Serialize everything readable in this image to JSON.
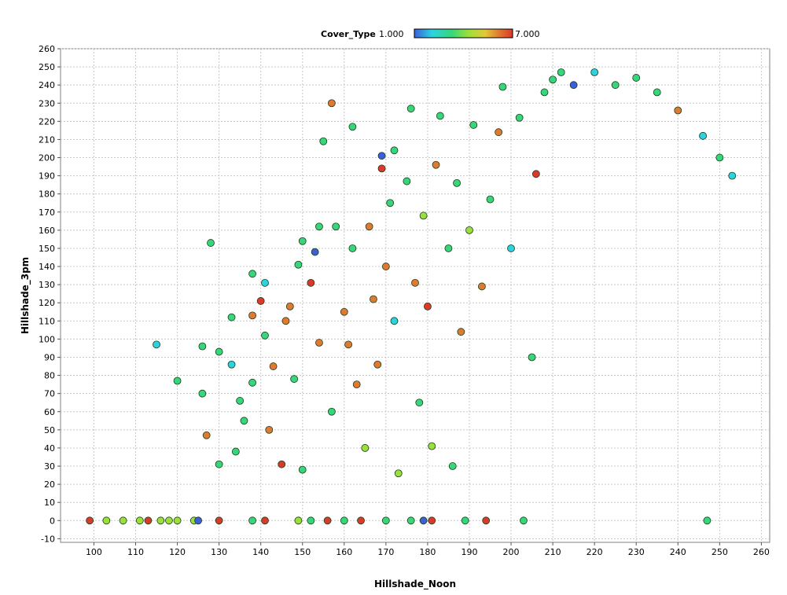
{
  "chart_data": {
    "type": "scatter",
    "xlabel": "Hillshade_Noon",
    "ylabel": "Hillshade_3pm",
    "xlim": [
      92,
      262
    ],
    "ylim": [
      -12,
      260
    ],
    "x_ticks": [
      100,
      110,
      120,
      130,
      140,
      150,
      160,
      170,
      180,
      190,
      200,
      210,
      220,
      230,
      240,
      250,
      260
    ],
    "y_ticks": [
      -10,
      0,
      10,
      20,
      30,
      40,
      50,
      60,
      70,
      80,
      90,
      100,
      110,
      120,
      130,
      140,
      150,
      160,
      170,
      180,
      190,
      200,
      210,
      220,
      230,
      240,
      250,
      260
    ],
    "grid": true,
    "legend": {
      "title": "Cover_Type",
      "min_label": "1.000",
      "max_label": "7.000",
      "placement": "top-center",
      "colors": [
        "#3a5fd9",
        "#2bd3e0",
        "#37d67a",
        "#9be03a",
        "#e3c83a",
        "#e07a30",
        "#d93a2b"
      ]
    },
    "points": [
      [
        99,
        0,
        7
      ],
      [
        103,
        0,
        4
      ],
      [
        107,
        0,
        4
      ],
      [
        111,
        0,
        4
      ],
      [
        113,
        0,
        7
      ],
      [
        116,
        0,
        4
      ],
      [
        118,
        0,
        4
      ],
      [
        120,
        0,
        4
      ],
      [
        124,
        0,
        4
      ],
      [
        125,
        0,
        1
      ],
      [
        130,
        0,
        7
      ],
      [
        138,
        0,
        3
      ],
      [
        141,
        0,
        7
      ],
      [
        149,
        0,
        4
      ],
      [
        152,
        0,
        3
      ],
      [
        156,
        0,
        7
      ],
      [
        160,
        0,
        3
      ],
      [
        164,
        0,
        7
      ],
      [
        170,
        0,
        3
      ],
      [
        176,
        0,
        3
      ],
      [
        179,
        0,
        1
      ],
      [
        181,
        0,
        7
      ],
      [
        189,
        0,
        3
      ],
      [
        194,
        0,
        7
      ],
      [
        203,
        0,
        3
      ],
      [
        247,
        0,
        3
      ],
      [
        115,
        97,
        2
      ],
      [
        120,
        77,
        3
      ],
      [
        126,
        96,
        3
      ],
      [
        126,
        70,
        3
      ],
      [
        128,
        153,
        3
      ],
      [
        127,
        47,
        6
      ],
      [
        130,
        93,
        3
      ],
      [
        130,
        31,
        3
      ],
      [
        133,
        112,
        3
      ],
      [
        133,
        86,
        2
      ],
      [
        134,
        38,
        3
      ],
      [
        135,
        66,
        3
      ],
      [
        136,
        55,
        3
      ],
      [
        138,
        76,
        3
      ],
      [
        138,
        113,
        6
      ],
      [
        138,
        136,
        3
      ],
      [
        140,
        121,
        7
      ],
      [
        141,
        131,
        2
      ],
      [
        141,
        102,
        3
      ],
      [
        142,
        50,
        6
      ],
      [
        143,
        85,
        6
      ],
      [
        145,
        31,
        7
      ],
      [
        146,
        110,
        6
      ],
      [
        147,
        118,
        6
      ],
      [
        148,
        78,
        3
      ],
      [
        149,
        141,
        3
      ],
      [
        150,
        154,
        3
      ],
      [
        150,
        28,
        3
      ],
      [
        152,
        131,
        7
      ],
      [
        153,
        148,
        1
      ],
      [
        154,
        162,
        3
      ],
      [
        154,
        98,
        6
      ],
      [
        155,
        209,
        3
      ],
      [
        157,
        60,
        3
      ],
      [
        157,
        230,
        6
      ],
      [
        158,
        162,
        3
      ],
      [
        160,
        115,
        6
      ],
      [
        161,
        97,
        6
      ],
      [
        162,
        150,
        3
      ],
      [
        162,
        217,
        3
      ],
      [
        163,
        75,
        6
      ],
      [
        165,
        40,
        4
      ],
      [
        166,
        162,
        6
      ],
      [
        167,
        122,
        6
      ],
      [
        168,
        86,
        6
      ],
      [
        169,
        201,
        1
      ],
      [
        169,
        194,
        7
      ],
      [
        170,
        140,
        6
      ],
      [
        171,
        175,
        3
      ],
      [
        172,
        110,
        2
      ],
      [
        172,
        204,
        3
      ],
      [
        173,
        26,
        4
      ],
      [
        175,
        187,
        3
      ],
      [
        176,
        227,
        3
      ],
      [
        177,
        131,
        6
      ],
      [
        178,
        65,
        3
      ],
      [
        179,
        168,
        4
      ],
      [
        180,
        118,
        7
      ],
      [
        181,
        41,
        4
      ],
      [
        182,
        196,
        6
      ],
      [
        183,
        223,
        3
      ],
      [
        185,
        150,
        3
      ],
      [
        186,
        30,
        3
      ],
      [
        187,
        186,
        3
      ],
      [
        188,
        104,
        6
      ],
      [
        190,
        160,
        4
      ],
      [
        191,
        218,
        3
      ],
      [
        193,
        129,
        6
      ],
      [
        195,
        177,
        3
      ],
      [
        197,
        214,
        6
      ],
      [
        198,
        239,
        3
      ],
      [
        200,
        150,
        2
      ],
      [
        202,
        222,
        3
      ],
      [
        205,
        90,
        3
      ],
      [
        206,
        191,
        7
      ],
      [
        208,
        236,
        3
      ],
      [
        210,
        243,
        3
      ],
      [
        212,
        247,
        3
      ],
      [
        215,
        240,
        1
      ],
      [
        220,
        247,
        2
      ],
      [
        225,
        240,
        3
      ],
      [
        230,
        244,
        3
      ],
      [
        235,
        236,
        3
      ],
      [
        240,
        226,
        6
      ],
      [
        246,
        212,
        2
      ],
      [
        250,
        200,
        3
      ],
      [
        253,
        190,
        2
      ]
    ]
  }
}
